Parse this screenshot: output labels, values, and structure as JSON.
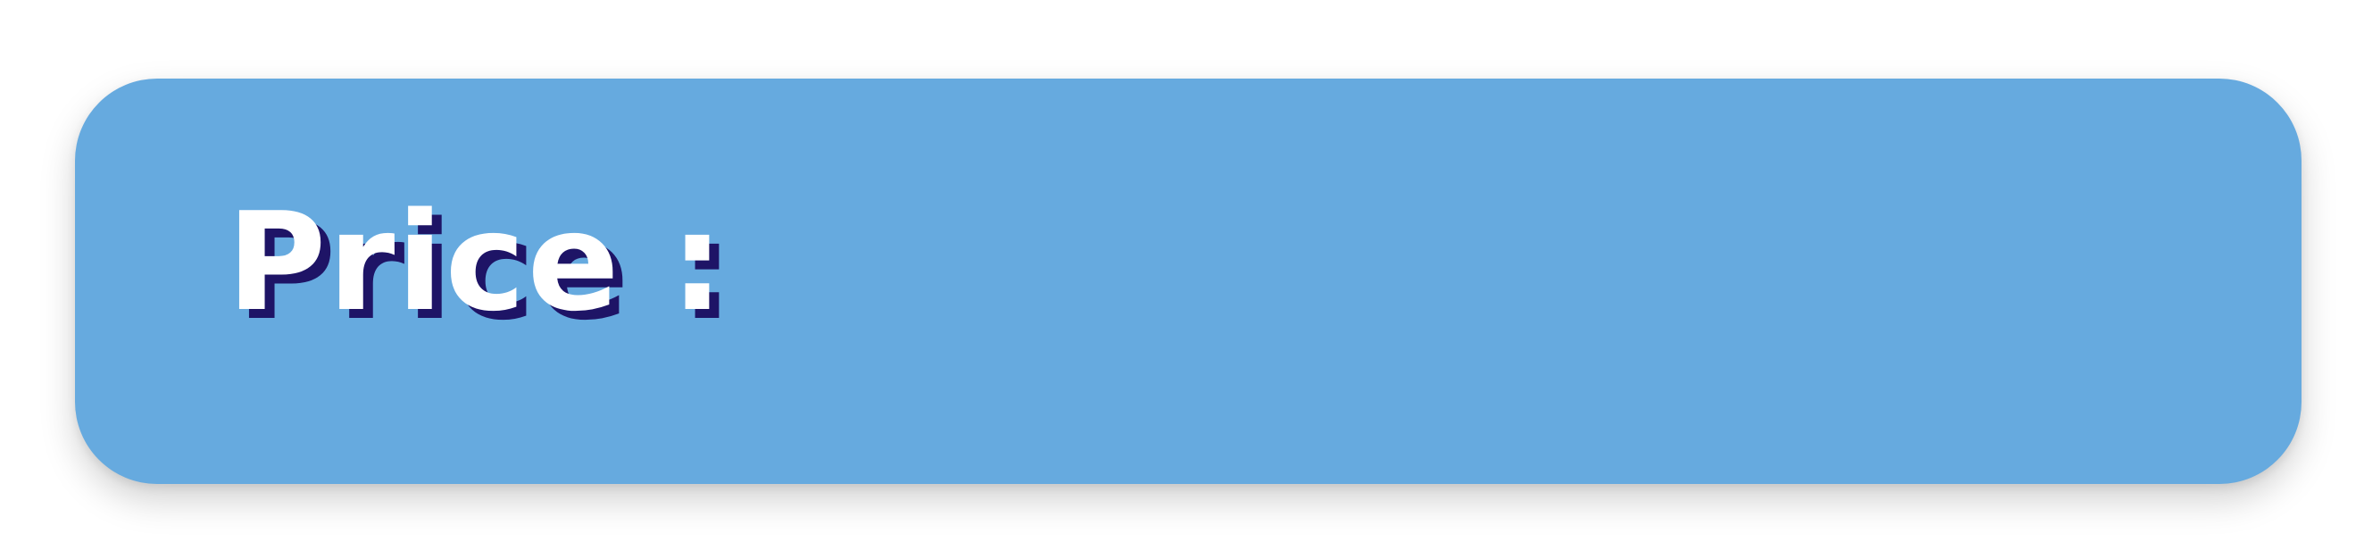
{
  "card": {
    "label": "Price :",
    "value": ""
  },
  "colors": {
    "card_background": "#66aadf",
    "text": "#ffffff",
    "text_shadow": "#1e1466",
    "page_background": "#ffffff"
  }
}
